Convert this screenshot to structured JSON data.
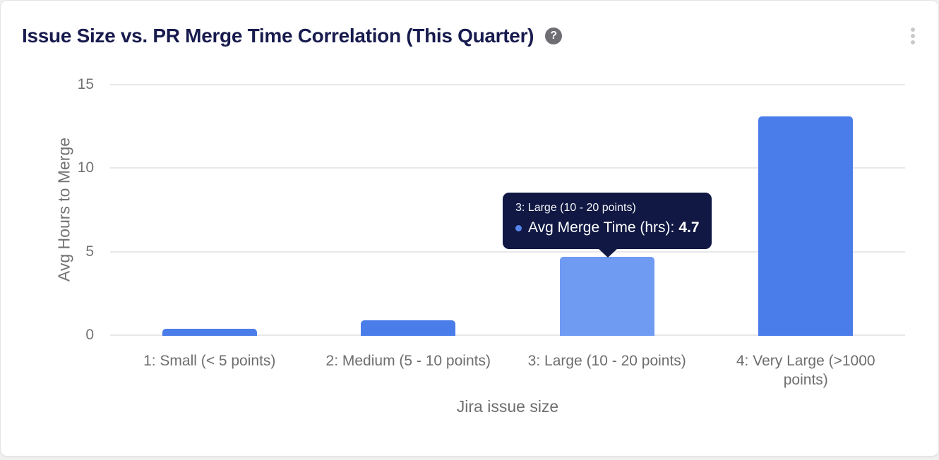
{
  "card": {
    "title": "Issue Size vs. PR Merge Time Correlation (This Quarter)",
    "help_glyph": "?"
  },
  "chart_data": {
    "type": "bar",
    "title": "Issue Size vs. PR Merge Time Correlation (This Quarter)",
    "xlabel": "Jira issue size",
    "ylabel": "Avg Hours to Merge",
    "categories": [
      "1: Small (< 5 points)",
      "2: Medium (5 - 10 points)",
      "3: Large (10 - 20 points)",
      "4: Very Large (>1000 points)"
    ],
    "series": [
      {
        "name": "Avg Merge Time (hrs)",
        "values": [
          0.4,
          0.9,
          4.7,
          13.1
        ]
      }
    ],
    "ylim": [
      0,
      15
    ],
    "yticks": [
      0,
      5,
      10,
      15
    ],
    "grid": true,
    "legend": false,
    "bar_color": "#4a7de9",
    "bar_hover_color": "#6f9bf2",
    "hovered_index": 2
  },
  "tooltip": {
    "category": "3: Large (10 - 20 points)",
    "series_label": "Avg Merge Time (hrs):",
    "value": "4.7",
    "marker_color": "#5585ec",
    "bg_color": "#101843"
  }
}
